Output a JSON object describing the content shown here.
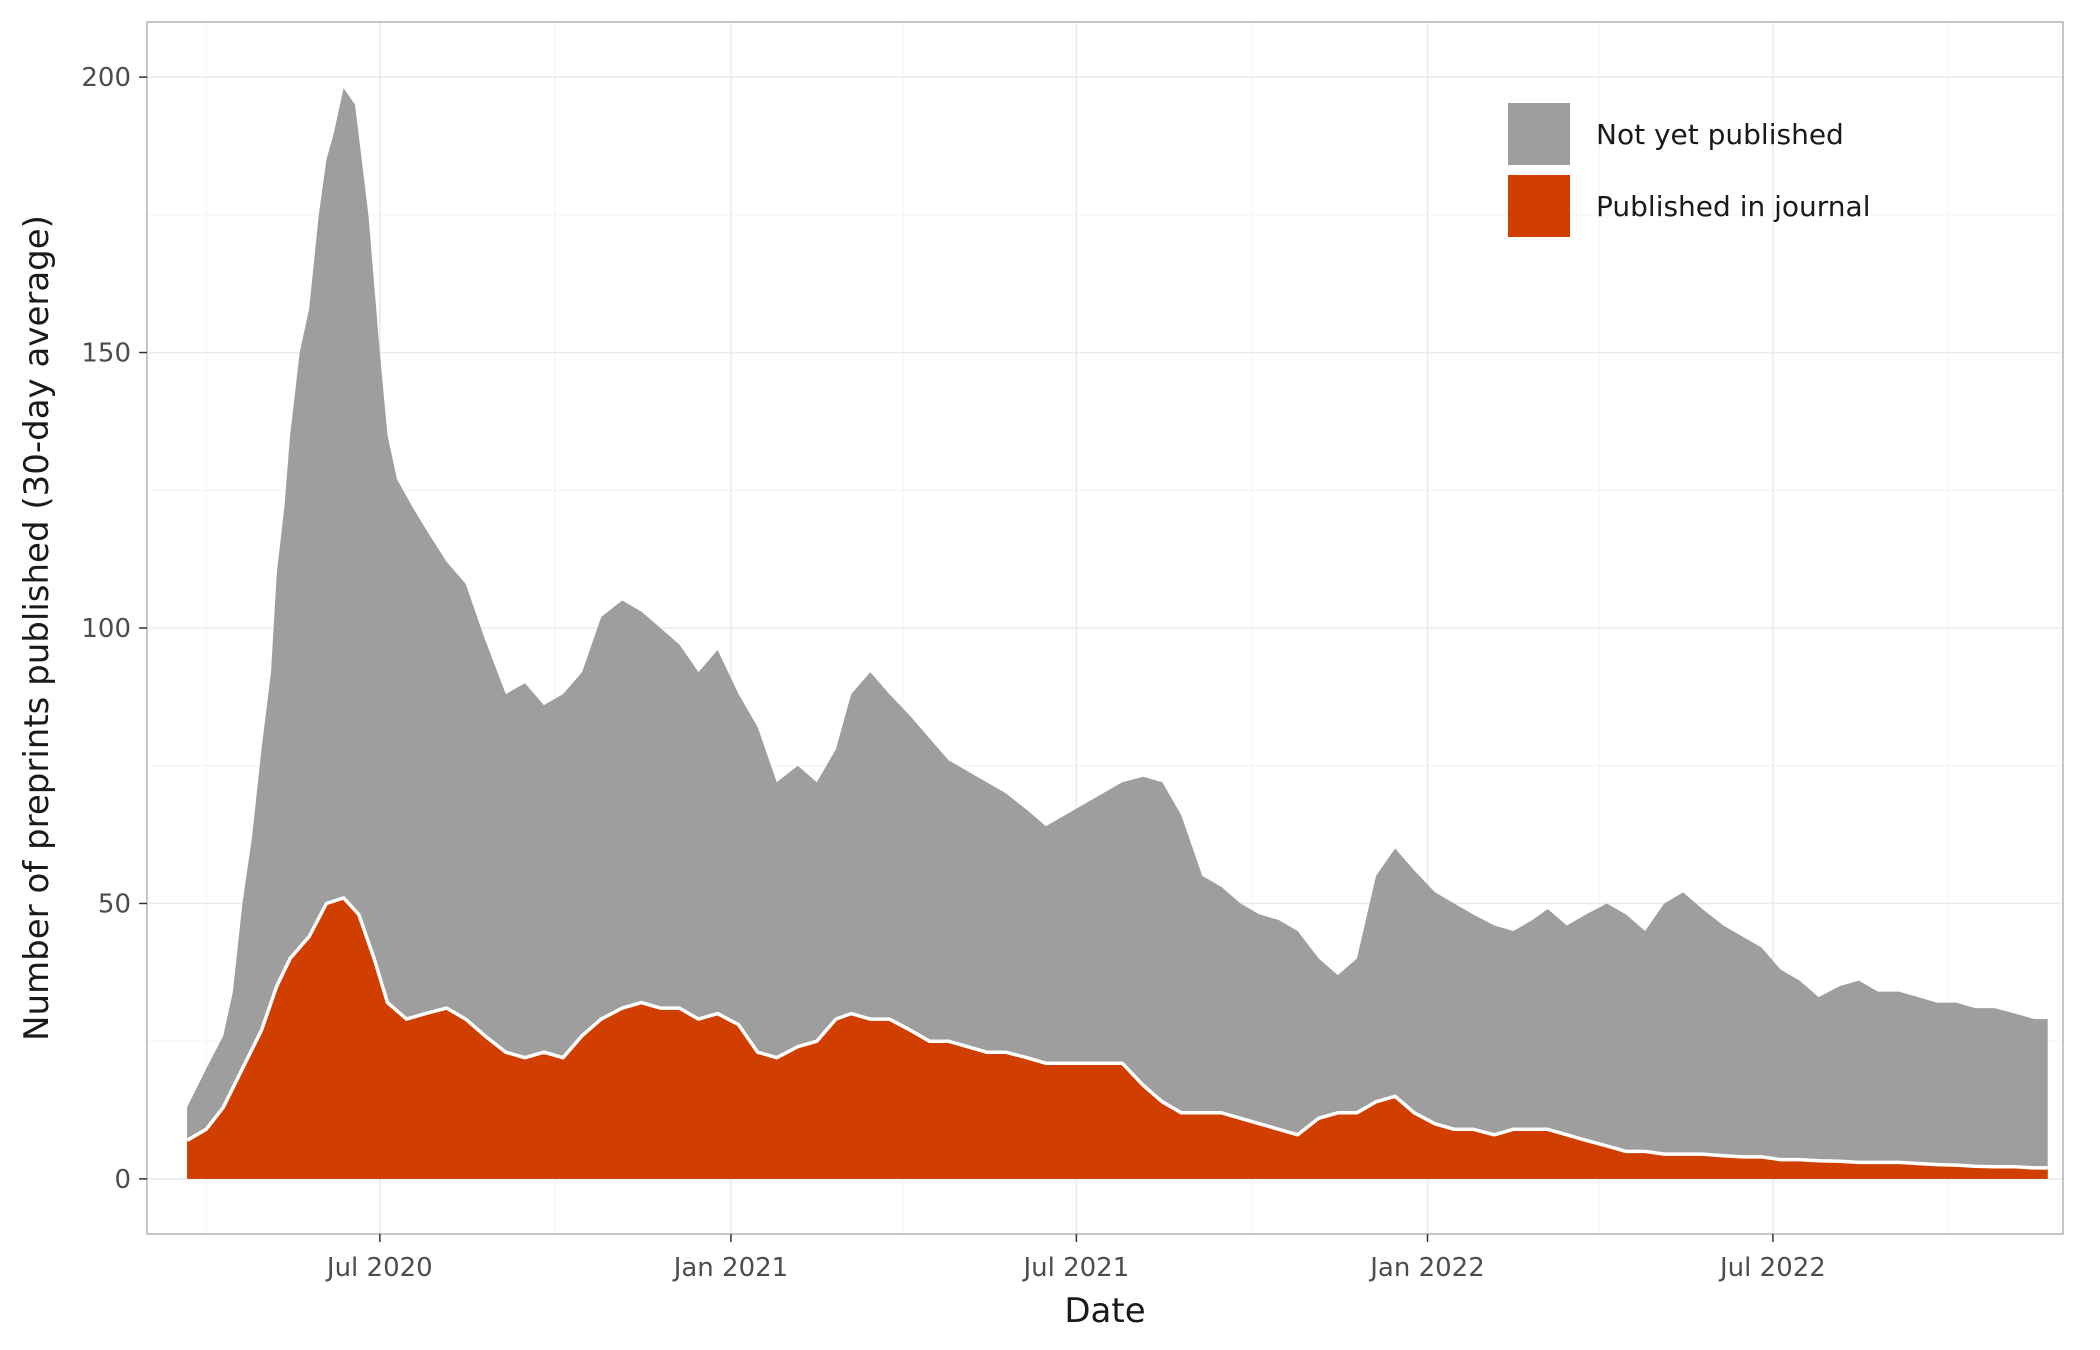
{
  "chart_data": {
    "type": "area",
    "stacked": true,
    "xlabel": "Date",
    "ylabel": "Number of preprints published (30-day average)",
    "xlim": [
      "2020-03-01",
      "2022-11-30"
    ],
    "ylim": [
      -10,
      210
    ],
    "x_ticks": [
      "2020-07-01",
      "2021-01-01",
      "2021-07-01",
      "2022-01-01",
      "2022-07-01"
    ],
    "x_tick_labels": [
      "Jul 2020",
      "Jan 2021",
      "Jul 2021",
      "Jan 2022",
      "Jul 2022"
    ],
    "y_ticks": [
      0,
      50,
      100,
      150,
      200
    ],
    "y_tick_labels": [
      "0",
      "50",
      "100",
      "150",
      "200"
    ],
    "grid": true,
    "legend_position": "top-right",
    "series": [
      {
        "name": "Not yet published",
        "color": "#9e9e9e",
        "role": "total",
        "x": [
          "2020-03-22",
          "2020-04-01",
          "2020-04-10",
          "2020-04-15",
          "2020-04-20",
          "2020-04-25",
          "2020-04-30",
          "2020-05-05",
          "2020-05-08",
          "2020-05-12",
          "2020-05-15",
          "2020-05-20",
          "2020-05-25",
          "2020-05-30",
          "2020-06-03",
          "2020-06-07",
          "2020-06-12",
          "2020-06-18",
          "2020-06-25",
          "2020-07-01",
          "2020-07-05",
          "2020-07-10",
          "2020-07-18",
          "2020-07-25",
          "2020-08-05",
          "2020-08-15",
          "2020-08-25",
          "2020-09-05",
          "2020-09-15",
          "2020-09-25",
          "2020-10-05",
          "2020-10-15",
          "2020-10-25",
          "2020-11-05",
          "2020-11-15",
          "2020-11-25",
          "2020-12-05",
          "2020-12-15",
          "2020-12-25",
          "2021-01-05",
          "2021-01-15",
          "2021-01-25",
          "2021-02-05",
          "2021-02-15",
          "2021-02-25",
          "2021-03-05",
          "2021-03-15",
          "2021-03-25",
          "2021-04-05",
          "2021-04-15",
          "2021-04-25",
          "2021-05-05",
          "2021-05-15",
          "2021-05-25",
          "2021-06-05",
          "2021-06-15",
          "2021-06-25",
          "2021-07-05",
          "2021-07-15",
          "2021-07-25",
          "2021-08-05",
          "2021-08-15",
          "2021-08-25",
          "2021-09-05",
          "2021-09-15",
          "2021-09-25",
          "2021-10-05",
          "2021-10-15",
          "2021-10-25",
          "2021-11-05",
          "2021-11-15",
          "2021-11-25",
          "2021-12-05",
          "2021-12-15",
          "2021-12-25",
          "2022-01-05",
          "2022-01-15",
          "2022-01-25",
          "2022-02-05",
          "2022-02-15",
          "2022-02-25",
          "2022-03-05",
          "2022-03-15",
          "2022-03-25",
          "2022-04-05",
          "2022-04-15",
          "2022-04-25",
          "2022-05-05",
          "2022-05-15",
          "2022-05-25",
          "2022-06-05",
          "2022-06-15",
          "2022-06-25",
          "2022-07-05",
          "2022-07-15",
          "2022-07-25",
          "2022-08-05",
          "2022-08-15",
          "2022-08-25",
          "2022-09-05",
          "2022-09-15",
          "2022-09-25",
          "2022-10-05",
          "2022-10-15",
          "2022-10-25",
          "2022-11-05",
          "2022-11-15",
          "2022-11-22"
        ],
        "values": [
          13,
          20,
          26,
          34,
          50,
          62,
          78,
          92,
          110,
          122,
          135,
          150,
          158,
          175,
          185,
          190,
          198,
          195,
          175,
          150,
          135,
          127,
          122,
          118,
          112,
          108,
          98,
          88,
          90,
          86,
          88,
          92,
          102,
          105,
          103,
          100,
          97,
          92,
          96,
          88,
          82,
          72,
          75,
          72,
          78,
          88,
          92,
          88,
          84,
          80,
          76,
          74,
          72,
          70,
          67,
          64,
          66,
          68,
          70,
          72,
          73,
          72,
          66,
          55,
          53,
          50,
          48,
          47,
          45,
          40,
          37,
          40,
          55,
          60,
          56,
          52,
          50,
          48,
          46,
          45,
          47,
          49,
          46,
          48,
          50,
          48,
          45,
          50,
          52,
          49,
          46,
          44,
          42,
          38,
          36,
          33,
          35,
          36,
          34,
          34,
          33,
          32,
          32,
          31,
          31,
          30,
          29,
          29
        ]
      },
      {
        "name": "Published in journal",
        "color": "#d13f00",
        "role": "lower",
        "x": [
          "2020-03-22",
          "2020-04-01",
          "2020-04-10",
          "2020-04-20",
          "2020-04-30",
          "2020-05-08",
          "2020-05-15",
          "2020-05-25",
          "2020-06-03",
          "2020-06-12",
          "2020-06-20",
          "2020-06-28",
          "2020-07-05",
          "2020-07-15",
          "2020-07-25",
          "2020-08-05",
          "2020-08-15",
          "2020-08-25",
          "2020-09-05",
          "2020-09-15",
          "2020-09-25",
          "2020-10-05",
          "2020-10-15",
          "2020-10-25",
          "2020-11-05",
          "2020-11-15",
          "2020-11-25",
          "2020-12-05",
          "2020-12-15",
          "2020-12-25",
          "2021-01-05",
          "2021-01-15",
          "2021-01-25",
          "2021-02-05",
          "2021-02-15",
          "2021-02-25",
          "2021-03-05",
          "2021-03-15",
          "2021-03-25",
          "2021-04-05",
          "2021-04-15",
          "2021-04-25",
          "2021-05-05",
          "2021-05-15",
          "2021-05-25",
          "2021-06-05",
          "2021-06-15",
          "2021-06-25",
          "2021-07-05",
          "2021-07-15",
          "2021-07-25",
          "2021-08-05",
          "2021-08-15",
          "2021-08-25",
          "2021-09-05",
          "2021-09-15",
          "2021-09-25",
          "2021-10-05",
          "2021-10-15",
          "2021-10-25",
          "2021-11-05",
          "2021-11-15",
          "2021-11-25",
          "2021-12-05",
          "2021-12-15",
          "2021-12-25",
          "2022-01-05",
          "2022-01-15",
          "2022-01-25",
          "2022-02-05",
          "2022-02-15",
          "2022-02-25",
          "2022-03-05",
          "2022-03-15",
          "2022-03-25",
          "2022-04-05",
          "2022-04-15",
          "2022-04-25",
          "2022-05-05",
          "2022-05-15",
          "2022-05-25",
          "2022-06-05",
          "2022-06-15",
          "2022-06-25",
          "2022-07-05",
          "2022-07-15",
          "2022-07-25",
          "2022-08-05",
          "2022-08-15",
          "2022-08-25",
          "2022-09-05",
          "2022-09-15",
          "2022-09-25",
          "2022-10-05",
          "2022-10-15",
          "2022-10-25",
          "2022-11-05",
          "2022-11-15",
          "2022-11-22"
        ],
        "values": [
          7,
          9,
          13,
          20,
          27,
          35,
          40,
          44,
          50,
          51,
          48,
          40,
          32,
          29,
          30,
          31,
          29,
          26,
          23,
          22,
          23,
          22,
          26,
          29,
          31,
          32,
          31,
          31,
          29,
          30,
          28,
          23,
          22,
          24,
          25,
          29,
          30,
          29,
          29,
          27,
          25,
          25,
          24,
          23,
          23,
          22,
          21,
          21,
          21,
          21,
          21,
          17,
          14,
          12,
          12,
          12,
          11,
          10,
          9,
          8,
          11,
          12,
          12,
          14,
          15,
          12,
          10,
          9,
          9,
          8,
          9,
          9,
          9,
          8,
          7,
          6,
          5,
          5,
          4.5,
          4.5,
          4.5,
          4.2,
          4,
          4,
          3.5,
          3.5,
          3.3,
          3.2,
          3,
          3,
          3,
          2.8,
          2.6,
          2.5,
          2.3,
          2.2,
          2.2,
          2,
          2
        ]
      }
    ]
  },
  "legend": {
    "items": [
      {
        "label": "Not yet published",
        "color": "#9e9e9e"
      },
      {
        "label": "Published in journal",
        "color": "#d13f00"
      }
    ]
  },
  "style": {
    "panel_border": "#b3b3b3",
    "grid_major": "#ebebeb",
    "grid_minor": "#f4f4f4",
    "separator_line": "#ffffff"
  }
}
